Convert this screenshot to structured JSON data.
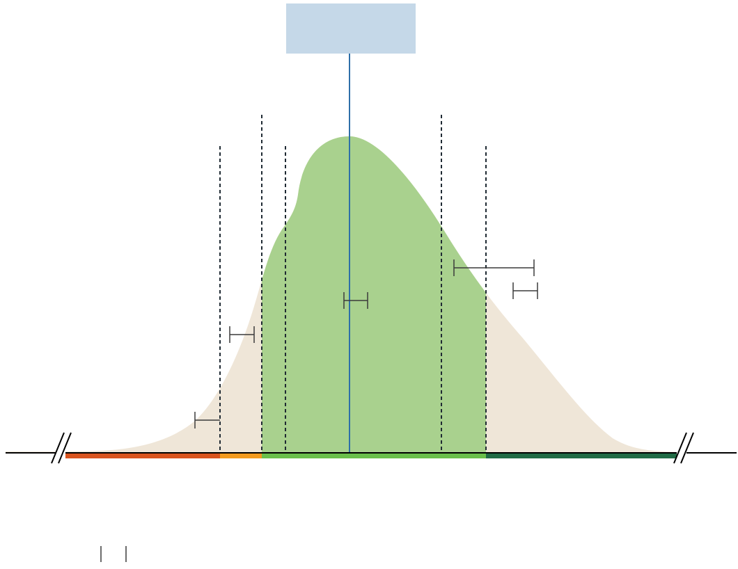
{
  "diagram": {
    "type": "distribution-diagram",
    "title_box": {
      "text": "",
      "fill": "#c5d8e8"
    },
    "colors": {
      "background_distribution": "#efe6d8",
      "highlighted_distribution": "#a9d18e",
      "center_line": "#2e6fa8",
      "dashed_lines": "#1f2a33",
      "axis": "#000000",
      "error_bars": "#3a3a3a"
    },
    "range_bar_colors": [
      "#d9541e",
      "#f39a1e",
      "#6abf4b",
      "#216b45"
    ],
    "dashed_line_count": 6,
    "error_bar_count": 6,
    "legend_ticks": 2,
    "axis_breaks": 2
  }
}
